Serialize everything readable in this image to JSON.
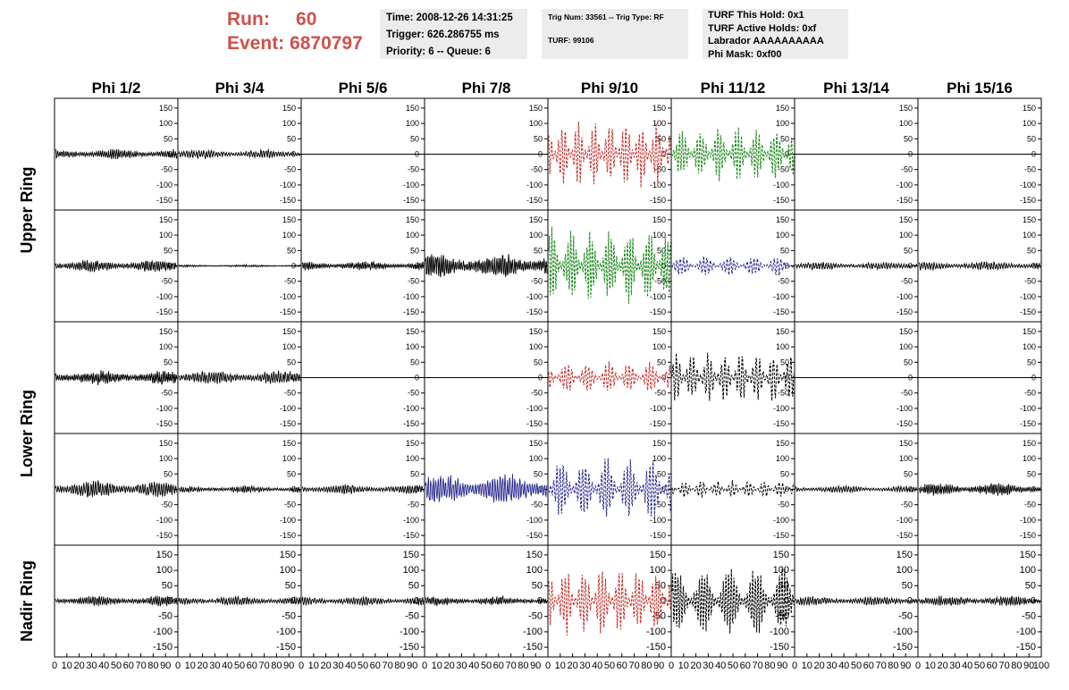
{
  "header": {
    "run_label": "Run:",
    "run_value": "60",
    "event_label": "Event:",
    "event_value": "6870797",
    "time_line": "Time: 2008-12-26 14:31:25",
    "trigger_line": "Trigger: 626.286755 ms",
    "priority_line": "Priority: 6 -- Queue: 6",
    "trig_num_line": "Trig Num: 33561 -- Trig Type: RF",
    "turf_line": "TURF: 99106",
    "turf_this_hold": "TURF This Hold: 0x1",
    "turf_active_holds": "TURF Active Holds: 0xf",
    "labrador": "Labrador AAAAAAAAAA",
    "phi_mask": "Phi Mask: 0xf00"
  },
  "chart_data": {
    "type": "line",
    "columns": [
      "Phi 1/2",
      "Phi 3/4",
      "Phi 5/6",
      "Phi 7/8",
      "Phi 9/10",
      "Phi 11/12",
      "Phi 13/14",
      "Phi 15/16"
    ],
    "ring_labels": [
      {
        "text": "Upper Ring",
        "rows": [
          0,
          1
        ]
      },
      {
        "text": "Lower Ring",
        "rows": [
          2,
          3
        ]
      },
      {
        "text": "Nadir Ring",
        "rows": [
          4,
          4
        ]
      }
    ],
    "xlim": [
      0,
      100
    ],
    "ylim": [
      -170,
      170
    ],
    "yticks": [
      -150,
      -100,
      -50,
      0,
      50,
      100,
      150
    ],
    "xtick_labels": [
      "0",
      "10",
      "20",
      "30",
      "40",
      "50",
      "60",
      "70",
      "80",
      "90",
      "100"
    ],
    "colors": {
      "black": "#000000",
      "red": "#c0302c",
      "green": "#1d8a1d",
      "blue": "#26268c"
    },
    "panels": [
      [
        {
          "color": "black",
          "amplitude": 18,
          "dashed": false,
          "flat": false
        },
        {
          "color": "black",
          "amplitude": 16,
          "dashed": false,
          "flat": false
        },
        {
          "color": "black",
          "amplitude": 0,
          "dashed": false,
          "flat": true
        },
        {
          "color": "black",
          "amplitude": 0,
          "dashed": false,
          "flat": true
        },
        {
          "color": "red",
          "amplitude": 120,
          "dashed": true,
          "flat": false
        },
        {
          "color": "green",
          "amplitude": 90,
          "dashed": true,
          "flat": false
        },
        {
          "color": "black",
          "amplitude": 0,
          "dashed": false,
          "flat": true
        },
        {
          "color": "black",
          "amplitude": 0,
          "dashed": false,
          "flat": true
        }
      ],
      [
        {
          "color": "black",
          "amplitude": 22,
          "dashed": false,
          "flat": false
        },
        {
          "color": "black",
          "amplitude": 4,
          "dashed": false,
          "flat": false
        },
        {
          "color": "black",
          "amplitude": 16,
          "dashed": false,
          "flat": false
        },
        {
          "color": "black",
          "amplitude": 45,
          "dashed": false,
          "flat": false
        },
        {
          "color": "green",
          "amplitude": 130,
          "dashed": true,
          "flat": false
        },
        {
          "color": "blue",
          "amplitude": 35,
          "dashed": true,
          "flat": false
        },
        {
          "color": "black",
          "amplitude": 14,
          "dashed": false,
          "flat": false
        },
        {
          "color": "black",
          "amplitude": 16,
          "dashed": false,
          "flat": false
        }
      ],
      [
        {
          "color": "black",
          "amplitude": 25,
          "dashed": false,
          "flat": false
        },
        {
          "color": "black",
          "amplitude": 25,
          "dashed": false,
          "flat": false
        },
        {
          "color": "black",
          "amplitude": 0,
          "dashed": false,
          "flat": true
        },
        {
          "color": "black",
          "amplitude": 0,
          "dashed": false,
          "flat": true
        },
        {
          "color": "red",
          "amplitude": 55,
          "dashed": true,
          "flat": false
        },
        {
          "color": "black",
          "amplitude": 90,
          "dashed": true,
          "flat": false
        },
        {
          "color": "black",
          "amplitude": 0,
          "dashed": false,
          "flat": true
        },
        {
          "color": "black",
          "amplitude": 0,
          "dashed": false,
          "flat": true
        }
      ],
      [
        {
          "color": "black",
          "amplitude": 32,
          "dashed": false,
          "flat": false
        },
        {
          "color": "black",
          "amplitude": 12,
          "dashed": false,
          "flat": false
        },
        {
          "color": "black",
          "amplitude": 16,
          "dashed": false,
          "flat": false
        },
        {
          "color": "blue",
          "amplitude": 55,
          "dashed": false,
          "flat": false
        },
        {
          "color": "blue",
          "amplitude": 110,
          "dashed": true,
          "flat": false
        },
        {
          "color": "black",
          "amplitude": 30,
          "dashed": true,
          "flat": false
        },
        {
          "color": "black",
          "amplitude": 12,
          "dashed": false,
          "flat": false
        },
        {
          "color": "black",
          "amplitude": 22,
          "dashed": false,
          "flat": false
        }
      ],
      [
        {
          "color": "black",
          "amplitude": 18,
          "dashed": false,
          "flat": false
        },
        {
          "color": "black",
          "amplitude": 16,
          "dashed": false,
          "flat": false
        },
        {
          "color": "black",
          "amplitude": 16,
          "dashed": false,
          "flat": false
        },
        {
          "color": "black",
          "amplitude": 16,
          "dashed": false,
          "flat": false
        },
        {
          "color": "red",
          "amplitude": 120,
          "dashed": true,
          "flat": false
        },
        {
          "color": "black",
          "amplitude": 120,
          "dashed": true,
          "flat": false
        },
        {
          "color": "black",
          "amplitude": 16,
          "dashed": false,
          "flat": false
        },
        {
          "color": "black",
          "amplitude": 18,
          "dashed": false,
          "flat": false
        }
      ]
    ]
  }
}
